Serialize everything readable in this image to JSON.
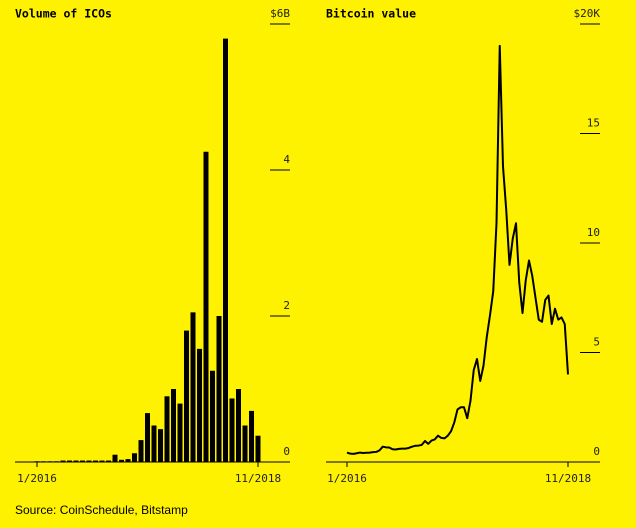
{
  "chart_data": [
    {
      "type": "bar",
      "title": "Volume of ICOs",
      "color": "#000000",
      "categories": [
        "1/2016",
        null,
        null,
        null,
        null,
        null,
        null,
        null,
        null,
        null,
        null,
        null,
        null,
        null,
        null,
        null,
        null,
        null,
        null,
        null,
        null,
        null,
        null,
        null,
        null,
        null,
        null,
        null,
        null,
        null,
        null,
        null,
        null,
        null,
        "11/2018"
      ],
      "values": [
        0.01,
        0.01,
        0.01,
        0.01,
        0.02,
        0.02,
        0.02,
        0.02,
        0.02,
        0.02,
        0.02,
        0.02,
        0.1,
        0.03,
        0.04,
        0.12,
        0.3,
        0.67,
        0.5,
        0.45,
        0.9,
        1.0,
        0.8,
        1.8,
        2.05,
        1.55,
        4.25,
        1.25,
        2.0,
        5.8,
        0.87,
        1.0,
        0.5,
        0.7,
        0.36
      ],
      "ylim": [
        0,
        6
      ],
      "yticks": [
        0,
        2,
        4,
        {
          "value": 6,
          "label": "$6B"
        }
      ]
    },
    {
      "type": "line",
      "title": "Bitcoin value",
      "color": "#000000",
      "categories": [
        "1/2016",
        null,
        null,
        null,
        null,
        null,
        null,
        null,
        null,
        null,
        null,
        null,
        null,
        null,
        null,
        null,
        null,
        null,
        null,
        null,
        null,
        null,
        null,
        null,
        null,
        null,
        null,
        null,
        null,
        null,
        null,
        null,
        null,
        null,
        null,
        null,
        null,
        null,
        null,
        null,
        null,
        null,
        null,
        null,
        null,
        null,
        null,
        null,
        null,
        null,
        null,
        null,
        null,
        null,
        null,
        null,
        null,
        null,
        null,
        null,
        null,
        null,
        null,
        null,
        null,
        null,
        null,
        null,
        "11/2018"
      ],
      "values": [
        0.43,
        0.38,
        0.37,
        0.4,
        0.43,
        0.41,
        0.42,
        0.43,
        0.45,
        0.46,
        0.53,
        0.7,
        0.67,
        0.66,
        0.58,
        0.57,
        0.6,
        0.61,
        0.61,
        0.64,
        0.7,
        0.74,
        0.75,
        0.78,
        0.96,
        0.83,
        0.98,
        1.03,
        1.2,
        1.1,
        1.08,
        1.2,
        1.4,
        1.8,
        2.4,
        2.5,
        2.5,
        2.0,
        2.8,
        4.2,
        4.7,
        3.7,
        4.4,
        5.7,
        6.7,
        7.8,
        10.9,
        19.0,
        13.5,
        11.5,
        9.0,
        10.2,
        10.9,
        8.2,
        6.8,
        8.3,
        9.2,
        8.5,
        7.5,
        6.5,
        6.4,
        7.4,
        7.6,
        6.3,
        7.0,
        6.5,
        6.6,
        6.3,
        4.0
      ],
      "ylim": [
        0,
        20
      ],
      "yticks": [
        0,
        5,
        10,
        15,
        {
          "value": 20,
          "label": "$20K"
        }
      ]
    }
  ],
  "source": "Source: CoinSchedule, Bitstamp"
}
